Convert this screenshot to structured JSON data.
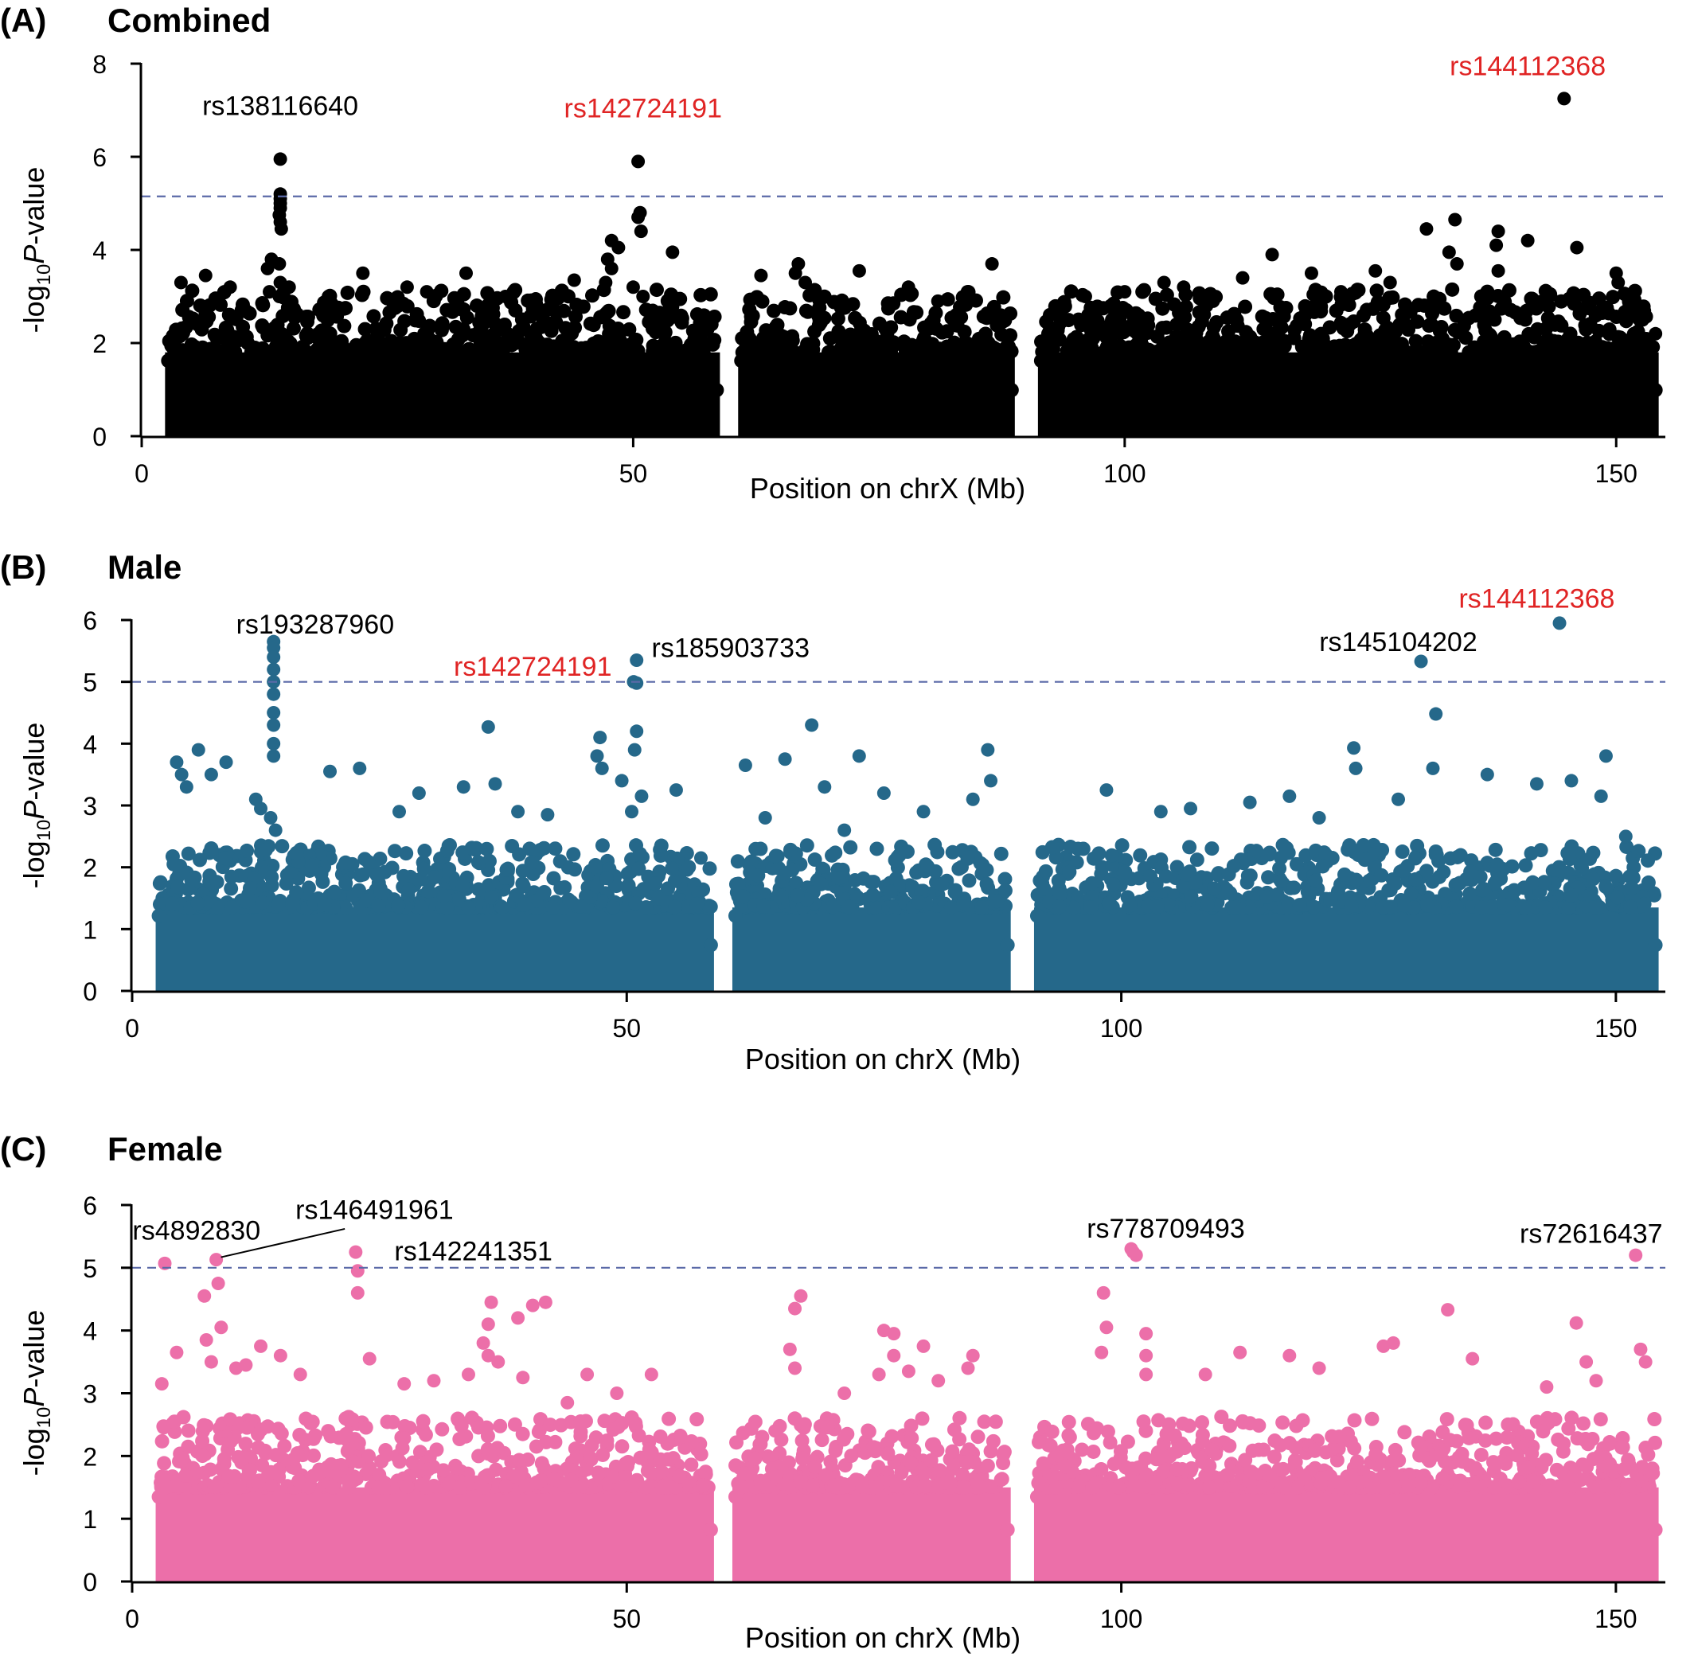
{
  "figure": {
    "x_unit": "Mb",
    "threshold_style": "dashed"
  },
  "chart_data": [
    {
      "type": "scatter",
      "panel_label": "(A)",
      "title": "Combined",
      "xlabel": "Position on chrX (Mb)",
      "ylabel_prefix": "-log",
      "ylabel_sub": "10",
      "ylabel_italic": "P",
      "ylabel_suffix": "-value",
      "xlim": [
        0,
        155
      ],
      "ylim": [
        0,
        8
      ],
      "xticks": [
        0,
        50,
        100,
        150
      ],
      "yticks": [
        0,
        2,
        4,
        6,
        8
      ],
      "color": "#000000",
      "threshold": 5.15,
      "threshold_color": "#5b6aa8",
      "bulk_height": 1.8,
      "segments": [
        [
          2.7,
          58.5
        ],
        [
          61.0,
          88.5
        ],
        [
          91.5,
          154.0
        ]
      ],
      "points": [
        {
          "x": 14.1,
          "y": 5.95
        },
        {
          "x": 14.1,
          "y": 5.2
        },
        {
          "x": 14.1,
          "y": 5.1
        },
        {
          "x": 14.1,
          "y": 5.0
        },
        {
          "x": 14.1,
          "y": 4.9
        },
        {
          "x": 14.0,
          "y": 4.75
        },
        {
          "x": 14.1,
          "y": 4.6
        },
        {
          "x": 14.2,
          "y": 4.45
        },
        {
          "x": 13.2,
          "y": 3.8
        },
        {
          "x": 12.8,
          "y": 3.6
        },
        {
          "x": 14.0,
          "y": 3.7
        },
        {
          "x": 14.1,
          "y": 3.3
        },
        {
          "x": 14.0,
          "y": 3.0
        },
        {
          "x": 13.0,
          "y": 3.1
        },
        {
          "x": 15.0,
          "y": 3.2
        },
        {
          "x": 50.5,
          "y": 5.9
        },
        {
          "x": 50.7,
          "y": 4.8
        },
        {
          "x": 50.5,
          "y": 4.7
        },
        {
          "x": 50.8,
          "y": 4.4
        },
        {
          "x": 47.8,
          "y": 4.2
        },
        {
          "x": 54.0,
          "y": 3.95
        },
        {
          "x": 48.5,
          "y": 4.05
        },
        {
          "x": 47.4,
          "y": 3.8
        },
        {
          "x": 47.8,
          "y": 3.6
        },
        {
          "x": 47.2,
          "y": 3.3
        },
        {
          "x": 50.0,
          "y": 3.2
        },
        {
          "x": 51.0,
          "y": 3.0
        },
        {
          "x": 52.0,
          "y": 2.7
        },
        {
          "x": 58.0,
          "y": 2.4
        },
        {
          "x": 53.0,
          "y": 2.6
        },
        {
          "x": 144.7,
          "y": 7.25
        },
        {
          "x": 133.6,
          "y": 4.65
        },
        {
          "x": 130.7,
          "y": 4.45
        },
        {
          "x": 138.0,
          "y": 4.4
        },
        {
          "x": 141.0,
          "y": 4.2
        },
        {
          "x": 137.8,
          "y": 4.1
        },
        {
          "x": 146.0,
          "y": 4.05
        },
        {
          "x": 133.0,
          "y": 3.95
        },
        {
          "x": 133.8,
          "y": 3.7
        },
        {
          "x": 138.0,
          "y": 3.55
        },
        {
          "x": 150.0,
          "y": 3.5
        },
        {
          "x": 125.5,
          "y": 3.55
        },
        {
          "x": 115.0,
          "y": 3.9
        },
        {
          "x": 112.0,
          "y": 3.4
        },
        {
          "x": 150.2,
          "y": 3.3
        },
        {
          "x": 86.5,
          "y": 3.7
        },
        {
          "x": 66.8,
          "y": 3.7
        },
        {
          "x": 73.0,
          "y": 3.55
        },
        {
          "x": 63.0,
          "y": 3.45
        },
        {
          "x": 67.5,
          "y": 3.3
        },
        {
          "x": 84.0,
          "y": 3.1
        },
        {
          "x": 78.0,
          "y": 3.2
        },
        {
          "x": 66.5,
          "y": 3.5
        },
        {
          "x": 69.0,
          "y": 3.0
        },
        {
          "x": 81.0,
          "y": 2.9
        },
        {
          "x": 4.0,
          "y": 3.3
        },
        {
          "x": 6.5,
          "y": 3.45
        },
        {
          "x": 9.0,
          "y": 3.2
        },
        {
          "x": 22.5,
          "y": 3.5
        },
        {
          "x": 33.0,
          "y": 3.5
        },
        {
          "x": 27.0,
          "y": 3.2
        },
        {
          "x": 44.0,
          "y": 3.35
        },
        {
          "x": 37.0,
          "y": 3.0
        },
        {
          "x": 29.0,
          "y": 3.1
        },
        {
          "x": 19.0,
          "y": 3.0
        },
        {
          "x": 96.0,
          "y": 3.0
        },
        {
          "x": 100.0,
          "y": 3.1
        },
        {
          "x": 104.0,
          "y": 3.3
        },
        {
          "x": 106.0,
          "y": 3.2
        },
        {
          "x": 109.0,
          "y": 2.9
        },
        {
          "x": 119.0,
          "y": 3.5
        },
        {
          "x": 122.0,
          "y": 3.1
        },
        {
          "x": 127.0,
          "y": 3.3
        },
        {
          "x": 152.0,
          "y": 2.6
        },
        {
          "x": 154.0,
          "y": 2.2
        }
      ],
      "annotations": [
        {
          "text": "rs138116640",
          "color": "#000000",
          "x": 14.1,
          "y": 6.9,
          "anchor": "middle"
        },
        {
          "text": "rs142724191",
          "color": "#e02424",
          "x": 51.0,
          "y": 6.85,
          "anchor": "middle"
        },
        {
          "text": "rs144112368",
          "color": "#e02424",
          "x": 141.0,
          "y": 7.75,
          "anchor": "middle"
        }
      ]
    },
    {
      "type": "scatter",
      "panel_label": "(B)",
      "title": "Male",
      "xlabel": "Position on chrX (Mb)",
      "ylabel_prefix": "-log",
      "ylabel_sub": "10",
      "ylabel_italic": "P",
      "ylabel_suffix": "-value",
      "xlim": [
        0,
        155
      ],
      "ylim": [
        0,
        6
      ],
      "xticks": [
        0,
        50,
        100,
        150
      ],
      "yticks": [
        0,
        1,
        2,
        3,
        4,
        5,
        6
      ],
      "color": "#25688a",
      "threshold": 5.0,
      "threshold_color": "#5b6aa8",
      "bulk_height": 1.35,
      "segments": [
        [
          2.7,
          58.5
        ],
        [
          61.0,
          88.5
        ],
        [
          91.5,
          154.0
        ]
      ],
      "points": [
        {
          "x": 14.3,
          "y": 5.65
        },
        {
          "x": 14.3,
          "y": 5.55
        },
        {
          "x": 14.3,
          "y": 5.4
        },
        {
          "x": 14.3,
          "y": 5.2
        },
        {
          "x": 14.3,
          "y": 5.0
        },
        {
          "x": 14.3,
          "y": 4.8
        },
        {
          "x": 14.3,
          "y": 4.5
        },
        {
          "x": 14.3,
          "y": 4.3
        },
        {
          "x": 14.3,
          "y": 4.0
        },
        {
          "x": 14.3,
          "y": 3.8
        },
        {
          "x": 12.5,
          "y": 3.1
        },
        {
          "x": 13.0,
          "y": 2.95
        },
        {
          "x": 14.0,
          "y": 2.8
        },
        {
          "x": 14.5,
          "y": 2.6
        },
        {
          "x": 51.0,
          "y": 5.35
        },
        {
          "x": 50.7,
          "y": 5.0
        },
        {
          "x": 51.0,
          "y": 4.98
        },
        {
          "x": 51.0,
          "y": 4.2
        },
        {
          "x": 50.8,
          "y": 3.9
        },
        {
          "x": 47.3,
          "y": 4.1
        },
        {
          "x": 47.0,
          "y": 3.8
        },
        {
          "x": 47.5,
          "y": 3.6
        },
        {
          "x": 49.5,
          "y": 3.4
        },
        {
          "x": 51.5,
          "y": 3.15
        },
        {
          "x": 55.0,
          "y": 3.25
        },
        {
          "x": 50.5,
          "y": 2.9
        },
        {
          "x": 57.5,
          "y": 2.15
        },
        {
          "x": 144.3,
          "y": 5.95
        },
        {
          "x": 130.3,
          "y": 5.33
        },
        {
          "x": 131.8,
          "y": 4.48
        },
        {
          "x": 131.5,
          "y": 3.6
        },
        {
          "x": 123.5,
          "y": 3.93
        },
        {
          "x": 123.7,
          "y": 3.6
        },
        {
          "x": 149.0,
          "y": 3.8
        },
        {
          "x": 137.0,
          "y": 3.5
        },
        {
          "x": 142.0,
          "y": 3.35
        },
        {
          "x": 145.5,
          "y": 3.4
        },
        {
          "x": 148.5,
          "y": 3.15
        },
        {
          "x": 128.0,
          "y": 3.1
        },
        {
          "x": 117.0,
          "y": 3.15
        },
        {
          "x": 113.0,
          "y": 3.05
        },
        {
          "x": 107.0,
          "y": 2.95
        },
        {
          "x": 98.5,
          "y": 3.25
        },
        {
          "x": 104.0,
          "y": 2.9
        },
        {
          "x": 120.0,
          "y": 2.8
        },
        {
          "x": 151.0,
          "y": 2.5
        },
        {
          "x": 36.0,
          "y": 4.27
        },
        {
          "x": 36.7,
          "y": 3.35
        },
        {
          "x": 9.5,
          "y": 3.7
        },
        {
          "x": 6.7,
          "y": 3.9
        },
        {
          "x": 4.5,
          "y": 3.7
        },
        {
          "x": 5.0,
          "y": 3.5
        },
        {
          "x": 5.5,
          "y": 3.3
        },
        {
          "x": 8.0,
          "y": 3.5
        },
        {
          "x": 20.0,
          "y": 3.55
        },
        {
          "x": 23.0,
          "y": 3.6
        },
        {
          "x": 29.0,
          "y": 3.2
        },
        {
          "x": 33.5,
          "y": 3.3
        },
        {
          "x": 39.0,
          "y": 2.9
        },
        {
          "x": 27.0,
          "y": 2.9
        },
        {
          "x": 42.0,
          "y": 2.85
        },
        {
          "x": 68.7,
          "y": 4.3
        },
        {
          "x": 66.0,
          "y": 3.75
        },
        {
          "x": 86.5,
          "y": 3.9
        },
        {
          "x": 73.5,
          "y": 3.8
        },
        {
          "x": 62.0,
          "y": 3.65
        },
        {
          "x": 70.0,
          "y": 3.3
        },
        {
          "x": 76.0,
          "y": 3.2
        },
        {
          "x": 86.8,
          "y": 3.4
        },
        {
          "x": 85.0,
          "y": 3.1
        },
        {
          "x": 80.0,
          "y": 2.9
        },
        {
          "x": 64.0,
          "y": 2.8
        },
        {
          "x": 72.0,
          "y": 2.6
        }
      ],
      "annotations": [
        {
          "text": "rs193287960",
          "color": "#000000",
          "x": 18.5,
          "y": 5.78,
          "anchor": "middle"
        },
        {
          "text": "rs142724191",
          "color": "#e02424",
          "x": 40.5,
          "y": 5.1,
          "anchor": "middle"
        },
        {
          "text": "rs185903733",
          "color": "#000000",
          "x": 60.5,
          "y": 5.4,
          "anchor": "middle"
        },
        {
          "text": "rs145104202",
          "color": "#000000",
          "x": 128.0,
          "y": 5.5,
          "anchor": "middle"
        },
        {
          "text": "rs144112368",
          "color": "#e02424",
          "x": 142.0,
          "y": 6.2,
          "anchor": "middle"
        }
      ]
    },
    {
      "type": "scatter",
      "panel_label": "(C)",
      "title": "Female",
      "xlabel": "Position on chrX (Mb)",
      "ylabel_prefix": "-log",
      "ylabel_sub": "10",
      "ylabel_italic": "P",
      "ylabel_suffix": "-value",
      "xlim": [
        0,
        155
      ],
      "ylim": [
        0,
        6
      ],
      "xticks": [
        0,
        50,
        100,
        150
      ],
      "yticks": [
        0,
        1,
        2,
        3,
        4,
        5,
        6
      ],
      "color": "#ec6fa9",
      "threshold": 5.0,
      "threshold_color": "#5b6aa8",
      "bulk_height": 1.5,
      "segments": [
        [
          2.7,
          58.5
        ],
        [
          61.0,
          88.5
        ],
        [
          91.5,
          154.0
        ]
      ],
      "points": [
        {
          "x": 3.3,
          "y": 5.07
        },
        {
          "x": 8.5,
          "y": 5.13
        },
        {
          "x": 7.3,
          "y": 4.55
        },
        {
          "x": 8.7,
          "y": 4.75
        },
        {
          "x": 22.6,
          "y": 5.25
        },
        {
          "x": 22.8,
          "y": 4.95
        },
        {
          "x": 22.8,
          "y": 4.6
        },
        {
          "x": 101.0,
          "y": 5.3
        },
        {
          "x": 101.2,
          "y": 5.25
        },
        {
          "x": 101.5,
          "y": 5.2
        },
        {
          "x": 152.0,
          "y": 5.2
        },
        {
          "x": 98.2,
          "y": 4.6
        },
        {
          "x": 98.5,
          "y": 4.05
        },
        {
          "x": 98.0,
          "y": 3.65
        },
        {
          "x": 102.5,
          "y": 3.95
        },
        {
          "x": 102.5,
          "y": 3.6
        },
        {
          "x": 102.5,
          "y": 3.3
        },
        {
          "x": 67.6,
          "y": 4.55
        },
        {
          "x": 67.0,
          "y": 4.35
        },
        {
          "x": 66.5,
          "y": 3.7
        },
        {
          "x": 67.0,
          "y": 3.4
        },
        {
          "x": 36.3,
          "y": 4.45
        },
        {
          "x": 40.5,
          "y": 4.4
        },
        {
          "x": 41.8,
          "y": 4.45
        },
        {
          "x": 39.0,
          "y": 4.2
        },
        {
          "x": 36.0,
          "y": 4.1
        },
        {
          "x": 35.5,
          "y": 3.8
        },
        {
          "x": 36.0,
          "y": 3.6
        },
        {
          "x": 37.0,
          "y": 3.5
        },
        {
          "x": 39.5,
          "y": 3.25
        },
        {
          "x": 34.0,
          "y": 3.3
        },
        {
          "x": 133.0,
          "y": 4.33
        },
        {
          "x": 146.0,
          "y": 4.12
        },
        {
          "x": 127.5,
          "y": 3.8
        },
        {
          "x": 126.5,
          "y": 3.75
        },
        {
          "x": 147.0,
          "y": 3.5
        },
        {
          "x": 152.5,
          "y": 3.7
        },
        {
          "x": 153.0,
          "y": 3.5
        },
        {
          "x": 148.0,
          "y": 3.2
        },
        {
          "x": 135.5,
          "y": 3.55
        },
        {
          "x": 112.0,
          "y": 3.65
        },
        {
          "x": 117.0,
          "y": 3.6
        },
        {
          "x": 120.0,
          "y": 3.4
        },
        {
          "x": 108.5,
          "y": 3.3
        },
        {
          "x": 143.0,
          "y": 3.1
        },
        {
          "x": 76.0,
          "y": 4.0
        },
        {
          "x": 77.0,
          "y": 3.95
        },
        {
          "x": 80.0,
          "y": 3.75
        },
        {
          "x": 77.0,
          "y": 3.6
        },
        {
          "x": 85.0,
          "y": 3.6
        },
        {
          "x": 84.5,
          "y": 3.4
        },
        {
          "x": 78.5,
          "y": 3.35
        },
        {
          "x": 81.5,
          "y": 3.2
        },
        {
          "x": 75.5,
          "y": 3.3
        },
        {
          "x": 72.0,
          "y": 3.0
        },
        {
          "x": 65.0,
          "y": 2.4
        },
        {
          "x": 9.0,
          "y": 4.05
        },
        {
          "x": 7.5,
          "y": 3.85
        },
        {
          "x": 4.5,
          "y": 3.65
        },
        {
          "x": 8.0,
          "y": 3.5
        },
        {
          "x": 13.0,
          "y": 3.75
        },
        {
          "x": 10.5,
          "y": 3.4
        },
        {
          "x": 15.0,
          "y": 3.6
        },
        {
          "x": 3.0,
          "y": 3.15
        },
        {
          "x": 11.5,
          "y": 3.45
        },
        {
          "x": 17.0,
          "y": 3.3
        },
        {
          "x": 27.5,
          "y": 3.15
        },
        {
          "x": 30.5,
          "y": 3.2
        },
        {
          "x": 46.0,
          "y": 3.3
        },
        {
          "x": 52.5,
          "y": 3.3
        },
        {
          "x": 44.0,
          "y": 2.85
        },
        {
          "x": 55.5,
          "y": 2.3
        },
        {
          "x": 49.0,
          "y": 3.0
        },
        {
          "x": 24.0,
          "y": 3.55
        }
      ],
      "annotations": [
        {
          "text": "rs4892830",
          "color": "#000000",
          "x": 6.5,
          "y": 5.45,
          "anchor": "middle"
        },
        {
          "text": "rs146491961",
          "color": "#000000",
          "x": 24.5,
          "y": 5.78,
          "anchor": "middle"
        },
        {
          "text": "rs142241351",
          "color": "#000000",
          "x": 34.5,
          "y": 5.12,
          "anchor": "middle"
        },
        {
          "text": "rs778709493",
          "color": "#000000",
          "x": 104.5,
          "y": 5.48,
          "anchor": "middle"
        },
        {
          "text": "rs72616437",
          "color": "#000000",
          "x": 147.5,
          "y": 5.4,
          "anchor": "middle"
        }
      ],
      "leaders": [
        {
          "from": [
            8.5,
            5.13
          ],
          "to": [
            21.5,
            5.62
          ]
        }
      ]
    }
  ]
}
